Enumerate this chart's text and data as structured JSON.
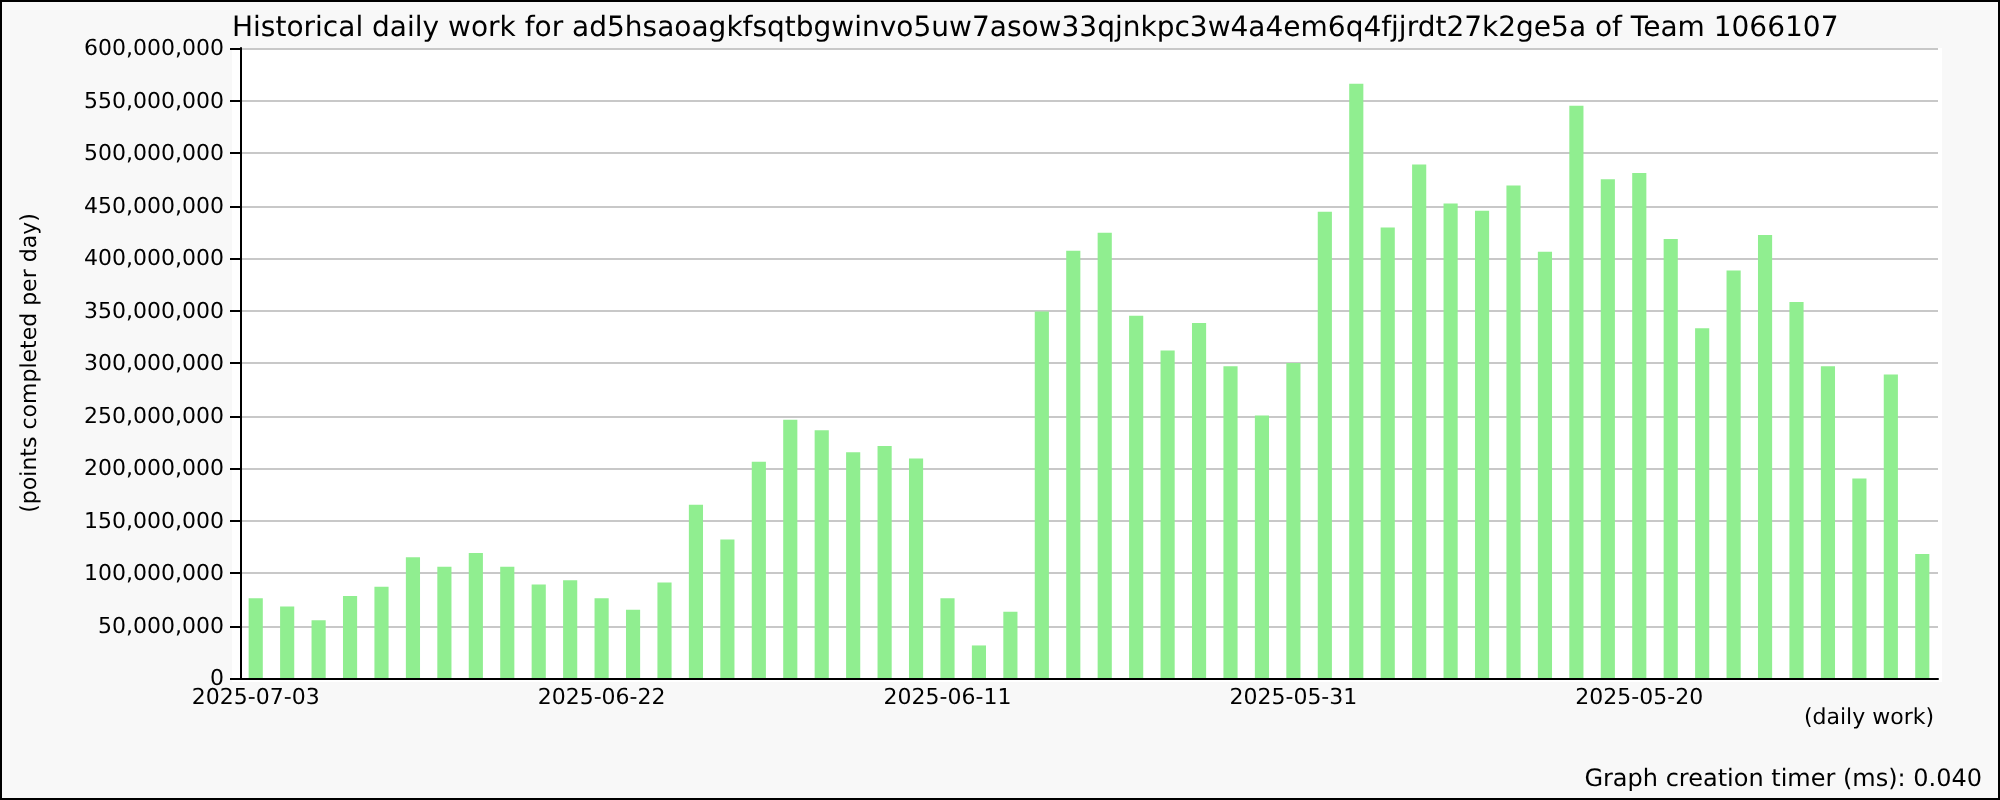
{
  "chart_data": {
    "type": "bar",
    "title": "Historical daily work for ad5hsaoagkfsqtbgwinvo5uw7asow33qjnkpc3w4a4em6q4fjjrdt27k2ge5a of Team 1066107",
    "xlabel": "(daily work)",
    "ylabel": "(points completed per day)",
    "annotations": [
      "Graph creation timer (ms): 0.040"
    ],
    "categories": [
      "2025-07-03",
      null,
      null,
      null,
      null,
      null,
      null,
      null,
      null,
      null,
      null,
      "2025-06-22",
      null,
      null,
      null,
      null,
      null,
      null,
      null,
      null,
      null,
      null,
      "2025-06-11",
      null,
      null,
      null,
      null,
      null,
      null,
      null,
      null,
      null,
      null,
      "2025-05-31",
      null,
      null,
      null,
      null,
      null,
      null,
      null,
      null,
      null,
      null,
      "2025-05-20",
      null,
      null,
      null,
      null,
      null,
      null,
      null,
      null,
      null
    ],
    "values": [
      76000000,
      68000000,
      55000000,
      78000000,
      87000000,
      115000000,
      106000000,
      119000000,
      106000000,
      89000000,
      93000000,
      76000000,
      65000000,
      91000000,
      165000000,
      132000000,
      206000000,
      246000000,
      236000000,
      215000000,
      221000000,
      209000000,
      76000000,
      31000000,
      63000000,
      349000000,
      407000000,
      424000000,
      345000000,
      312000000,
      338000000,
      297000000,
      250000000,
      300000000,
      444000000,
      566000000,
      429000000,
      489000000,
      452000000,
      445000000,
      469000000,
      406000000,
      545000000,
      475000000,
      481000000,
      418000000,
      333000000,
      388000000,
      422000000,
      358000000,
      297000000,
      190000000,
      289000000,
      118000000
    ],
    "color": "#90ee90",
    "ylim": [
      0,
      600000000
    ],
    "yticks": [
      {
        "value": 0,
        "label": "0"
      },
      {
        "value": 50000000,
        "label": "50,000,000"
      },
      {
        "value": 100000000,
        "label": "100,000,000"
      },
      {
        "value": 150000000,
        "label": "150,000,000"
      },
      {
        "value": 200000000,
        "label": "200,000,000"
      },
      {
        "value": 250000000,
        "label": "250,000,000"
      },
      {
        "value": 300000000,
        "label": "300,000,000"
      },
      {
        "value": 350000000,
        "label": "350,000,000"
      },
      {
        "value": 400000000,
        "label": "400,000,000"
      },
      {
        "value": 450000000,
        "label": "450,000,000"
      },
      {
        "value": 500000000,
        "label": "500,000,000"
      },
      {
        "value": 550000000,
        "label": "550,000,000"
      },
      {
        "value": 600000000,
        "label": "600,000,000"
      }
    ],
    "grid": "y"
  }
}
